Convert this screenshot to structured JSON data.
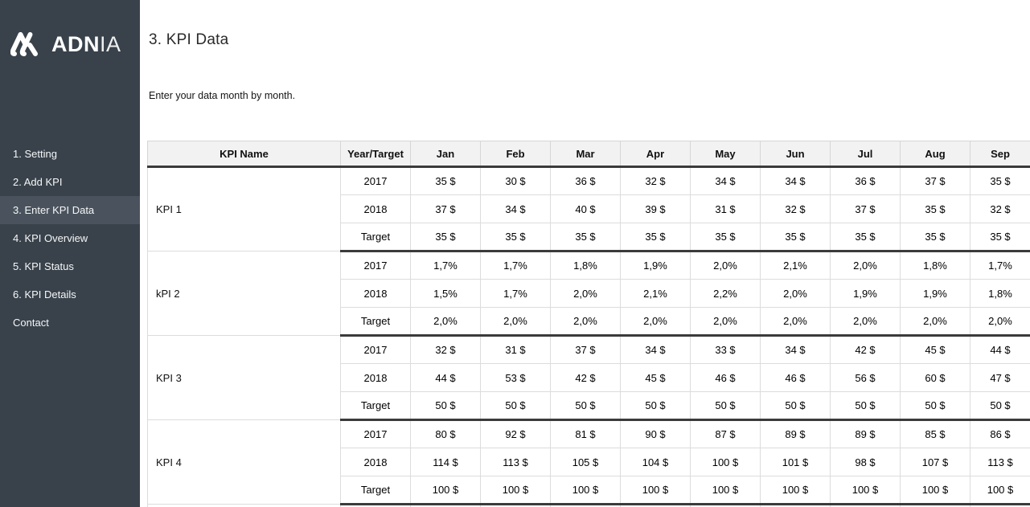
{
  "colors": {
    "sidebar_bg": "#39424b",
    "sidebar_active_bg": "#4a535d",
    "sidebar_text": "#f6f7f8",
    "header_row_bg": "#f2f2f2",
    "thick_border": "#3b3b3b",
    "thin_border": "#dcdcdc"
  },
  "sidebar": {
    "logo": {
      "icon": "adnia-logo-icon",
      "brand_bold": "ADN",
      "brand_light": "IA"
    },
    "items": [
      {
        "label": "1. Setting",
        "active": false
      },
      {
        "label": "2. Add KPI",
        "active": false
      },
      {
        "label": "3. Enter KPI Data",
        "active": true
      },
      {
        "label": "4. KPI Overview",
        "active": false
      },
      {
        "label": "5. KPI Status",
        "active": false
      },
      {
        "label": "6. KPI Details",
        "active": false
      },
      {
        "label": "Contact",
        "active": false
      }
    ]
  },
  "header": {
    "title": "3. KPI Data",
    "subtitle": "Enter your data month by month."
  },
  "kpi_table": {
    "columns": [
      "KPI Name",
      "Year/Target",
      "Jan",
      "Feb",
      "Mar",
      "Apr",
      "May",
      "Jun",
      "Jul",
      "Aug",
      "Sep"
    ],
    "groups": [
      {
        "name": "KPI 1",
        "rows": [
          {
            "label": "2017",
            "values": [
              "35 $",
              "30 $",
              "36 $",
              "32 $",
              "34 $",
              "34 $",
              "36 $",
              "37 $",
              "35 $"
            ]
          },
          {
            "label": "2018",
            "values": [
              "37 $",
              "34 $",
              "40 $",
              "39 $",
              "31 $",
              "32 $",
              "37 $",
              "35 $",
              "32 $"
            ]
          },
          {
            "label": "Target",
            "values": [
              "35 $",
              "35 $",
              "35 $",
              "35 $",
              "35 $",
              "35 $",
              "35 $",
              "35 $",
              "35 $"
            ]
          }
        ]
      },
      {
        "name": "kPI 2",
        "rows": [
          {
            "label": "2017",
            "values": [
              "1,7%",
              "1,7%",
              "1,8%",
              "1,9%",
              "2,0%",
              "2,1%",
              "2,0%",
              "1,8%",
              "1,7%"
            ]
          },
          {
            "label": "2018",
            "values": [
              "1,5%",
              "1,7%",
              "2,0%",
              "2,1%",
              "2,2%",
              "2,0%",
              "1,9%",
              "1,9%",
              "1,8%"
            ]
          },
          {
            "label": "Target",
            "values": [
              "2,0%",
              "2,0%",
              "2,0%",
              "2,0%",
              "2,0%",
              "2,0%",
              "2,0%",
              "2,0%",
              "2,0%"
            ]
          }
        ]
      },
      {
        "name": "KPI 3",
        "rows": [
          {
            "label": "2017",
            "values": [
              "32 $",
              "31 $",
              "37 $",
              "34 $",
              "33 $",
              "34 $",
              "42 $",
              "45 $",
              "44 $"
            ]
          },
          {
            "label": "2018",
            "values": [
              "44 $",
              "53 $",
              "42 $",
              "45 $",
              "46 $",
              "46 $",
              "56 $",
              "60 $",
              "47 $"
            ]
          },
          {
            "label": "Target",
            "values": [
              "50 $",
              "50 $",
              "50 $",
              "50 $",
              "50 $",
              "50 $",
              "50 $",
              "50 $",
              "50 $"
            ]
          }
        ]
      },
      {
        "name": "KPI 4",
        "rows": [
          {
            "label": "2017",
            "values": [
              "80 $",
              "92 $",
              "81 $",
              "90 $",
              "87 $",
              "89 $",
              "89 $",
              "85 $",
              "86 $"
            ]
          },
          {
            "label": "2018",
            "values": [
              "114 $",
              "113 $",
              "105 $",
              "104 $",
              "100 $",
              "101 $",
              "98 $",
              "107 $",
              "113 $"
            ]
          },
          {
            "label": "Target",
            "values": [
              "100 $",
              "100 $",
              "100 $",
              "100 $",
              "100 $",
              "100 $",
              "100 $",
              "100 $",
              "100 $"
            ]
          }
        ]
      }
    ]
  }
}
